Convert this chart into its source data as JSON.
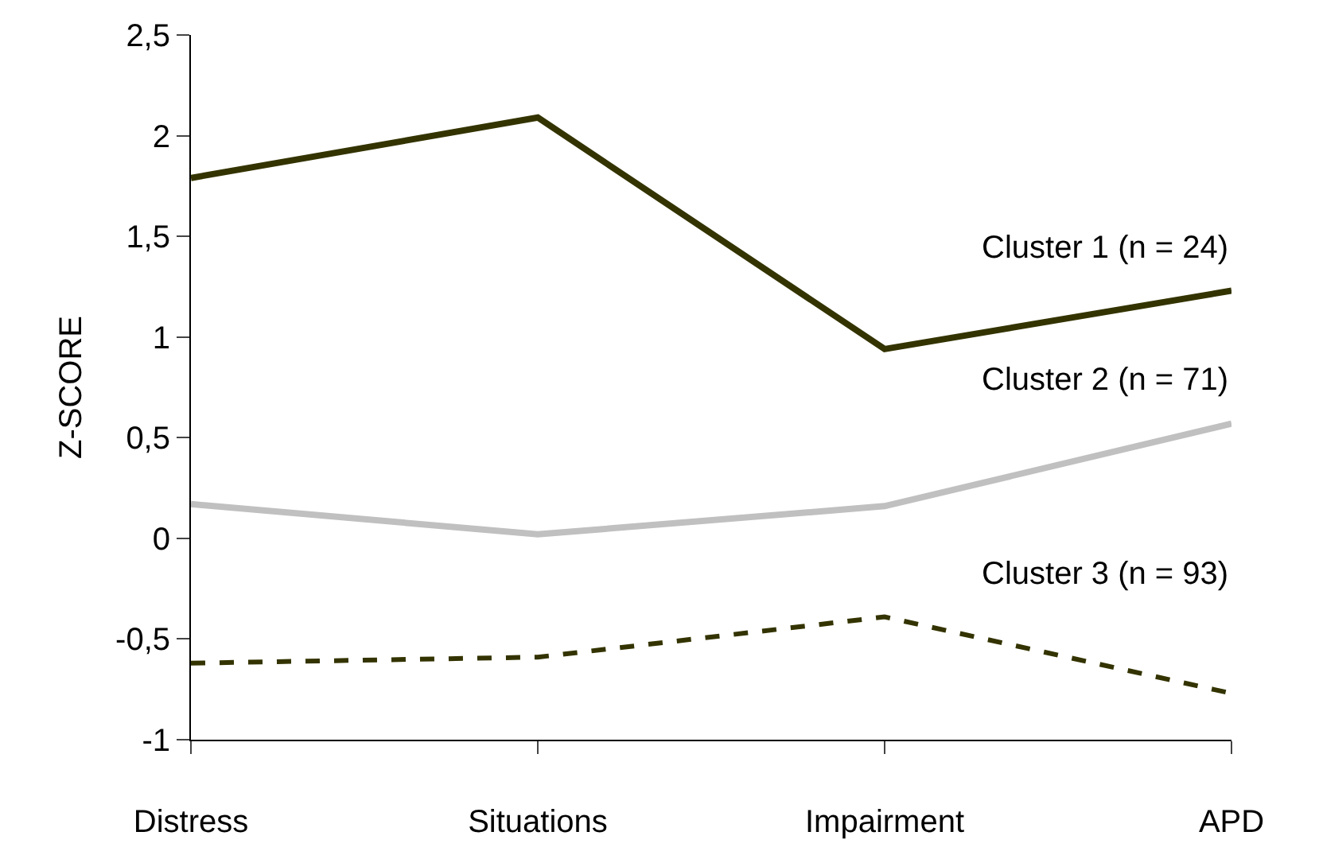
{
  "chart_data": {
    "type": "line",
    "ylabel": "Z-SCORE",
    "categories": [
      "Distress",
      "Situations",
      "Impairment",
      "APD"
    ],
    "series": [
      {
        "name": "Cluster 1 (n = 24)",
        "color": "#333300",
        "line_style": "solid",
        "values": [
          1.79,
          2.09,
          0.94,
          1.23
        ]
      },
      {
        "name": "Cluster 2 (n = 71)",
        "color": "#c0c0c0",
        "line_style": "solid",
        "values": [
          0.17,
          0.02,
          0.16,
          0.57
        ]
      },
      {
        "name": "Cluster 3 (n = 93)",
        "color": "#333300",
        "line_style": "dashed",
        "values": [
          -0.62,
          -0.59,
          -0.39,
          -0.77
        ]
      }
    ],
    "ylim": [
      -1,
      2.5
    ],
    "yticks": [
      -1,
      {
        "value": -0.5,
        "label": "-0,5"
      },
      0,
      {
        "value": 0.5,
        "label": "0,5"
      },
      1,
      {
        "value": 1.5,
        "label": "1,5"
      },
      2,
      {
        "value": 2.5,
        "label": "2,5"
      }
    ],
    "legend": false,
    "marker": "none"
  }
}
